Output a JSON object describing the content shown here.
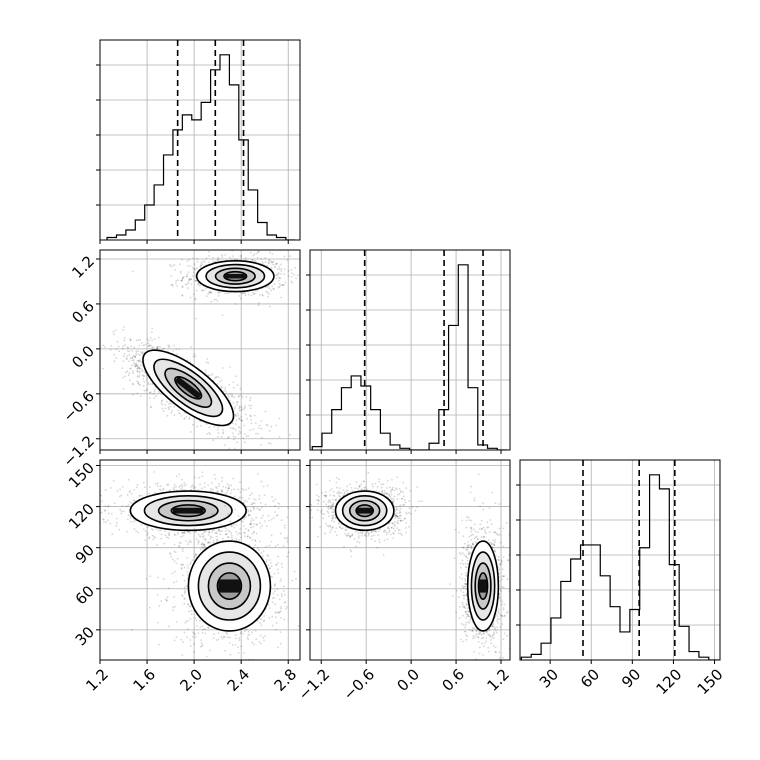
{
  "chart_data": {
    "type": "corner",
    "grid": true,
    "parameters": [
      {
        "range": [
          1.2,
          2.9
        ],
        "ticks": [
          "1.2",
          "1.6",
          "2.0",
          "2.4",
          "2.8"
        ],
        "tick_values": [
          1.2,
          1.6,
          2.0,
          2.4,
          2.8
        ],
        "quantiles": [
          1.86,
          2.18,
          2.42
        ]
      },
      {
        "range": [
          -1.35,
          1.32
        ],
        "ticks": [
          "−1.2",
          "−0.6",
          "0.0",
          "0.6",
          "1.2"
        ],
        "tick_values": [
          -1.2,
          -0.6,
          0.0,
          0.6,
          1.2
        ],
        "quantiles": [
          -0.62,
          0.44,
          0.96
        ]
      },
      {
        "range": [
          8,
          154
        ],
        "ticks": [
          "30",
          "60",
          "90",
          "120",
          "150"
        ],
        "tick_values": [
          30,
          60,
          90,
          120,
          150
        ],
        "quantiles": [
          54,
          95,
          121
        ]
      }
    ],
    "histograms": [
      {
        "param": 0,
        "edges_start": 1.26,
        "bin_width": 0.08,
        "counts": [
          1,
          2,
          4,
          8,
          14,
          22,
          34,
          44,
          50,
          48,
          55,
          68,
          74,
          62,
          40,
          20,
          7,
          2,
          1,
          0
        ]
      },
      {
        "param": 1,
        "edges_start": -1.32,
        "bin_width": 0.13,
        "counts": [
          2,
          10,
          24,
          37,
          44,
          38,
          24,
          10,
          3,
          1,
          0,
          0,
          4,
          24,
          74,
          110,
          37,
          3,
          1,
          0
        ]
      },
      {
        "param": 2,
        "edges_start": 9,
        "bin_width": 7.2,
        "counts": [
          1,
          2,
          6,
          15,
          28,
          36,
          41,
          41,
          30,
          19,
          10,
          18,
          40,
          66,
          61,
          34,
          12,
          3,
          1,
          0
        ]
      }
    ],
    "clusters_2d": [
      {
        "panel": "p1_vs_p0",
        "center": [
          2.35,
          0.97
        ],
        "spread": [
          0.16,
          0.1
        ],
        "corr": 0.0,
        "n": 900
      },
      {
        "panel": "p1_vs_p0",
        "center": [
          1.95,
          -0.52
        ],
        "spread": [
          0.2,
          0.22
        ],
        "corr": -0.75,
        "n": 1400
      },
      {
        "panel": "p2_vs_p0",
        "center": [
          1.95,
          117
        ],
        "spread": [
          0.24,
          7
        ],
        "corr": 0.0,
        "n": 1200
      },
      {
        "panel": "p2_vs_p0",
        "center": [
          2.3,
          62
        ],
        "spread": [
          0.17,
          16
        ],
        "corr": 0.0,
        "n": 1200
      },
      {
        "panel": "p2_vs_p1",
        "center": [
          -0.62,
          117
        ],
        "spread": [
          0.19,
          7
        ],
        "corr": 0.0,
        "n": 1200
      },
      {
        "panel": "p2_vs_p1",
        "center": [
          0.96,
          62
        ],
        "spread": [
          0.1,
          16
        ],
        "corr": 0.0,
        "n": 1200
      }
    ]
  }
}
